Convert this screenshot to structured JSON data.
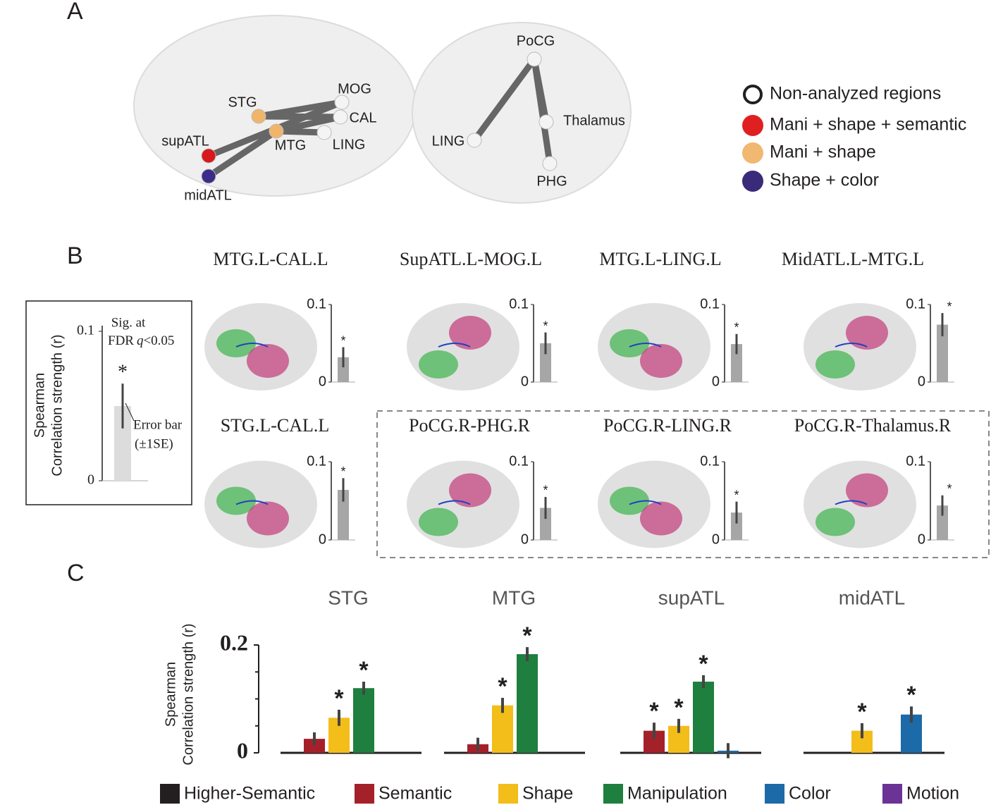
{
  "panel_a": {
    "label": "A",
    "left_nodes": [
      {
        "label": "STG",
        "color": "#f0b56a"
      },
      {
        "label": "MOG",
        "color": "#f4f4f4"
      },
      {
        "label": "CAL",
        "color": "#f4f4f4"
      },
      {
        "label": "supATL",
        "color": "#d7191c"
      },
      {
        "label": "MTG",
        "color": "#f0b56a"
      },
      {
        "label": "LING",
        "color": "#f4f4f4"
      },
      {
        "label": "midATL",
        "color": "#3b2c8a"
      }
    ],
    "right_nodes": [
      {
        "label": "PoCG",
        "color": "#f4f4f4"
      },
      {
        "label": "Thalamus",
        "color": "#f4f4f4"
      },
      {
        "label": "LING",
        "color": "#f4f4f4"
      },
      {
        "label": "PHG",
        "color": "#f4f4f4"
      }
    ],
    "legend": [
      {
        "label": "Non-analyzed regions",
        "color": "#ffffff"
      },
      {
        "label": "Mani + shape + semantic",
        "color": "#e02020"
      },
      {
        "label": "Mani + shape",
        "color": "#f0b870"
      },
      {
        "label": "Shape + color",
        "color": "#3a2a7a"
      }
    ]
  },
  "panel_b": {
    "label": "B",
    "example": {
      "y_label": [
        "Spearman",
        "Correlation strength (r)"
      ],
      "ylim": [
        0,
        0.1
      ],
      "yticks": [
        0,
        0.1
      ],
      "value": 0.05,
      "error": 0.015,
      "significance": "*",
      "sig_note": [
        "Sig. at",
        "FDR",
        "q",
        "<0.05"
      ],
      "error_note": [
        "Error bar",
        "(±1SE)"
      ]
    },
    "ylim": [
      0,
      0.1
    ],
    "yticks": [
      0,
      0.1
    ],
    "plots": [
      {
        "title": "MTG.L-CAL.L",
        "value": 0.032,
        "error": 0.013,
        "significance": "*"
      },
      {
        "title": "SupATL.L-MOG.L",
        "value": 0.05,
        "error": 0.014,
        "significance": "*"
      },
      {
        "title": "MTG.L-LING.L",
        "value": 0.049,
        "error": 0.013,
        "significance": "*"
      },
      {
        "title": "MidATL.L-MTG.L",
        "value": 0.074,
        "error": 0.015,
        "significance": "*"
      },
      {
        "title": "STG.L-CAL.L",
        "value": 0.064,
        "error": 0.015,
        "significance": "*"
      },
      {
        "title": "PoCG.R-PHG.R",
        "value": 0.041,
        "error": 0.014,
        "significance": "*"
      },
      {
        "title": "PoCG.R-LING.R",
        "value": 0.035,
        "error": 0.014,
        "significance": "*"
      },
      {
        "title": "PoCG.R-Thalamus.R",
        "value": 0.044,
        "error": 0.013,
        "significance": "*"
      }
    ]
  },
  "panel_c": {
    "label": "C",
    "y_label": [
      "Spearman",
      "Correlation strength (r)"
    ],
    "ylim": [
      0,
      0.2
    ],
    "yticks": [
      0,
      0.2
    ],
    "minor_yticks": [
      0.05,
      0.1,
      0.15
    ],
    "groups": [
      "STG",
      "MTG",
      "supATL",
      "midATL"
    ],
    "series": [
      {
        "name": "Higher-Semantic",
        "color": "#231f20",
        "values": [
          null,
          null,
          null,
          null
        ],
        "errors": [
          null,
          null,
          null,
          null
        ],
        "significance": [
          null,
          null,
          null,
          null
        ]
      },
      {
        "name": "Semantic",
        "color": "#a5212a",
        "values": [
          0.026,
          0.016,
          0.041,
          null
        ],
        "errors": [
          0.012,
          0.012,
          0.015,
          null
        ],
        "significance": [
          null,
          null,
          "*",
          null
        ]
      },
      {
        "name": "Shape",
        "color": "#f3bd1a",
        "values": [
          0.065,
          0.088,
          0.05,
          0.041
        ],
        "errors": [
          0.015,
          0.014,
          0.013,
          0.014
        ],
        "significance": [
          "*",
          "*",
          "*",
          "*"
        ]
      },
      {
        "name": "Manipulation",
        "color": "#1f7f3e",
        "values": [
          0.12,
          0.183,
          0.132,
          null
        ],
        "errors": [
          0.012,
          0.013,
          0.012,
          null
        ],
        "significance": [
          "*",
          "*",
          "*",
          null
        ]
      },
      {
        "name": "Color",
        "color": "#1c6aa8",
        "values": [
          null,
          null,
          0.004,
          0.071
        ],
        "errors": [
          null,
          null,
          0.014,
          0.015
        ],
        "significance": [
          null,
          null,
          null,
          "*"
        ]
      },
      {
        "name": "Motion",
        "color": "#6a3395",
        "values": [
          null,
          null,
          null,
          null
        ],
        "errors": [
          null,
          null,
          null,
          null
        ],
        "significance": [
          null,
          null,
          null,
          null
        ]
      }
    ]
  }
}
